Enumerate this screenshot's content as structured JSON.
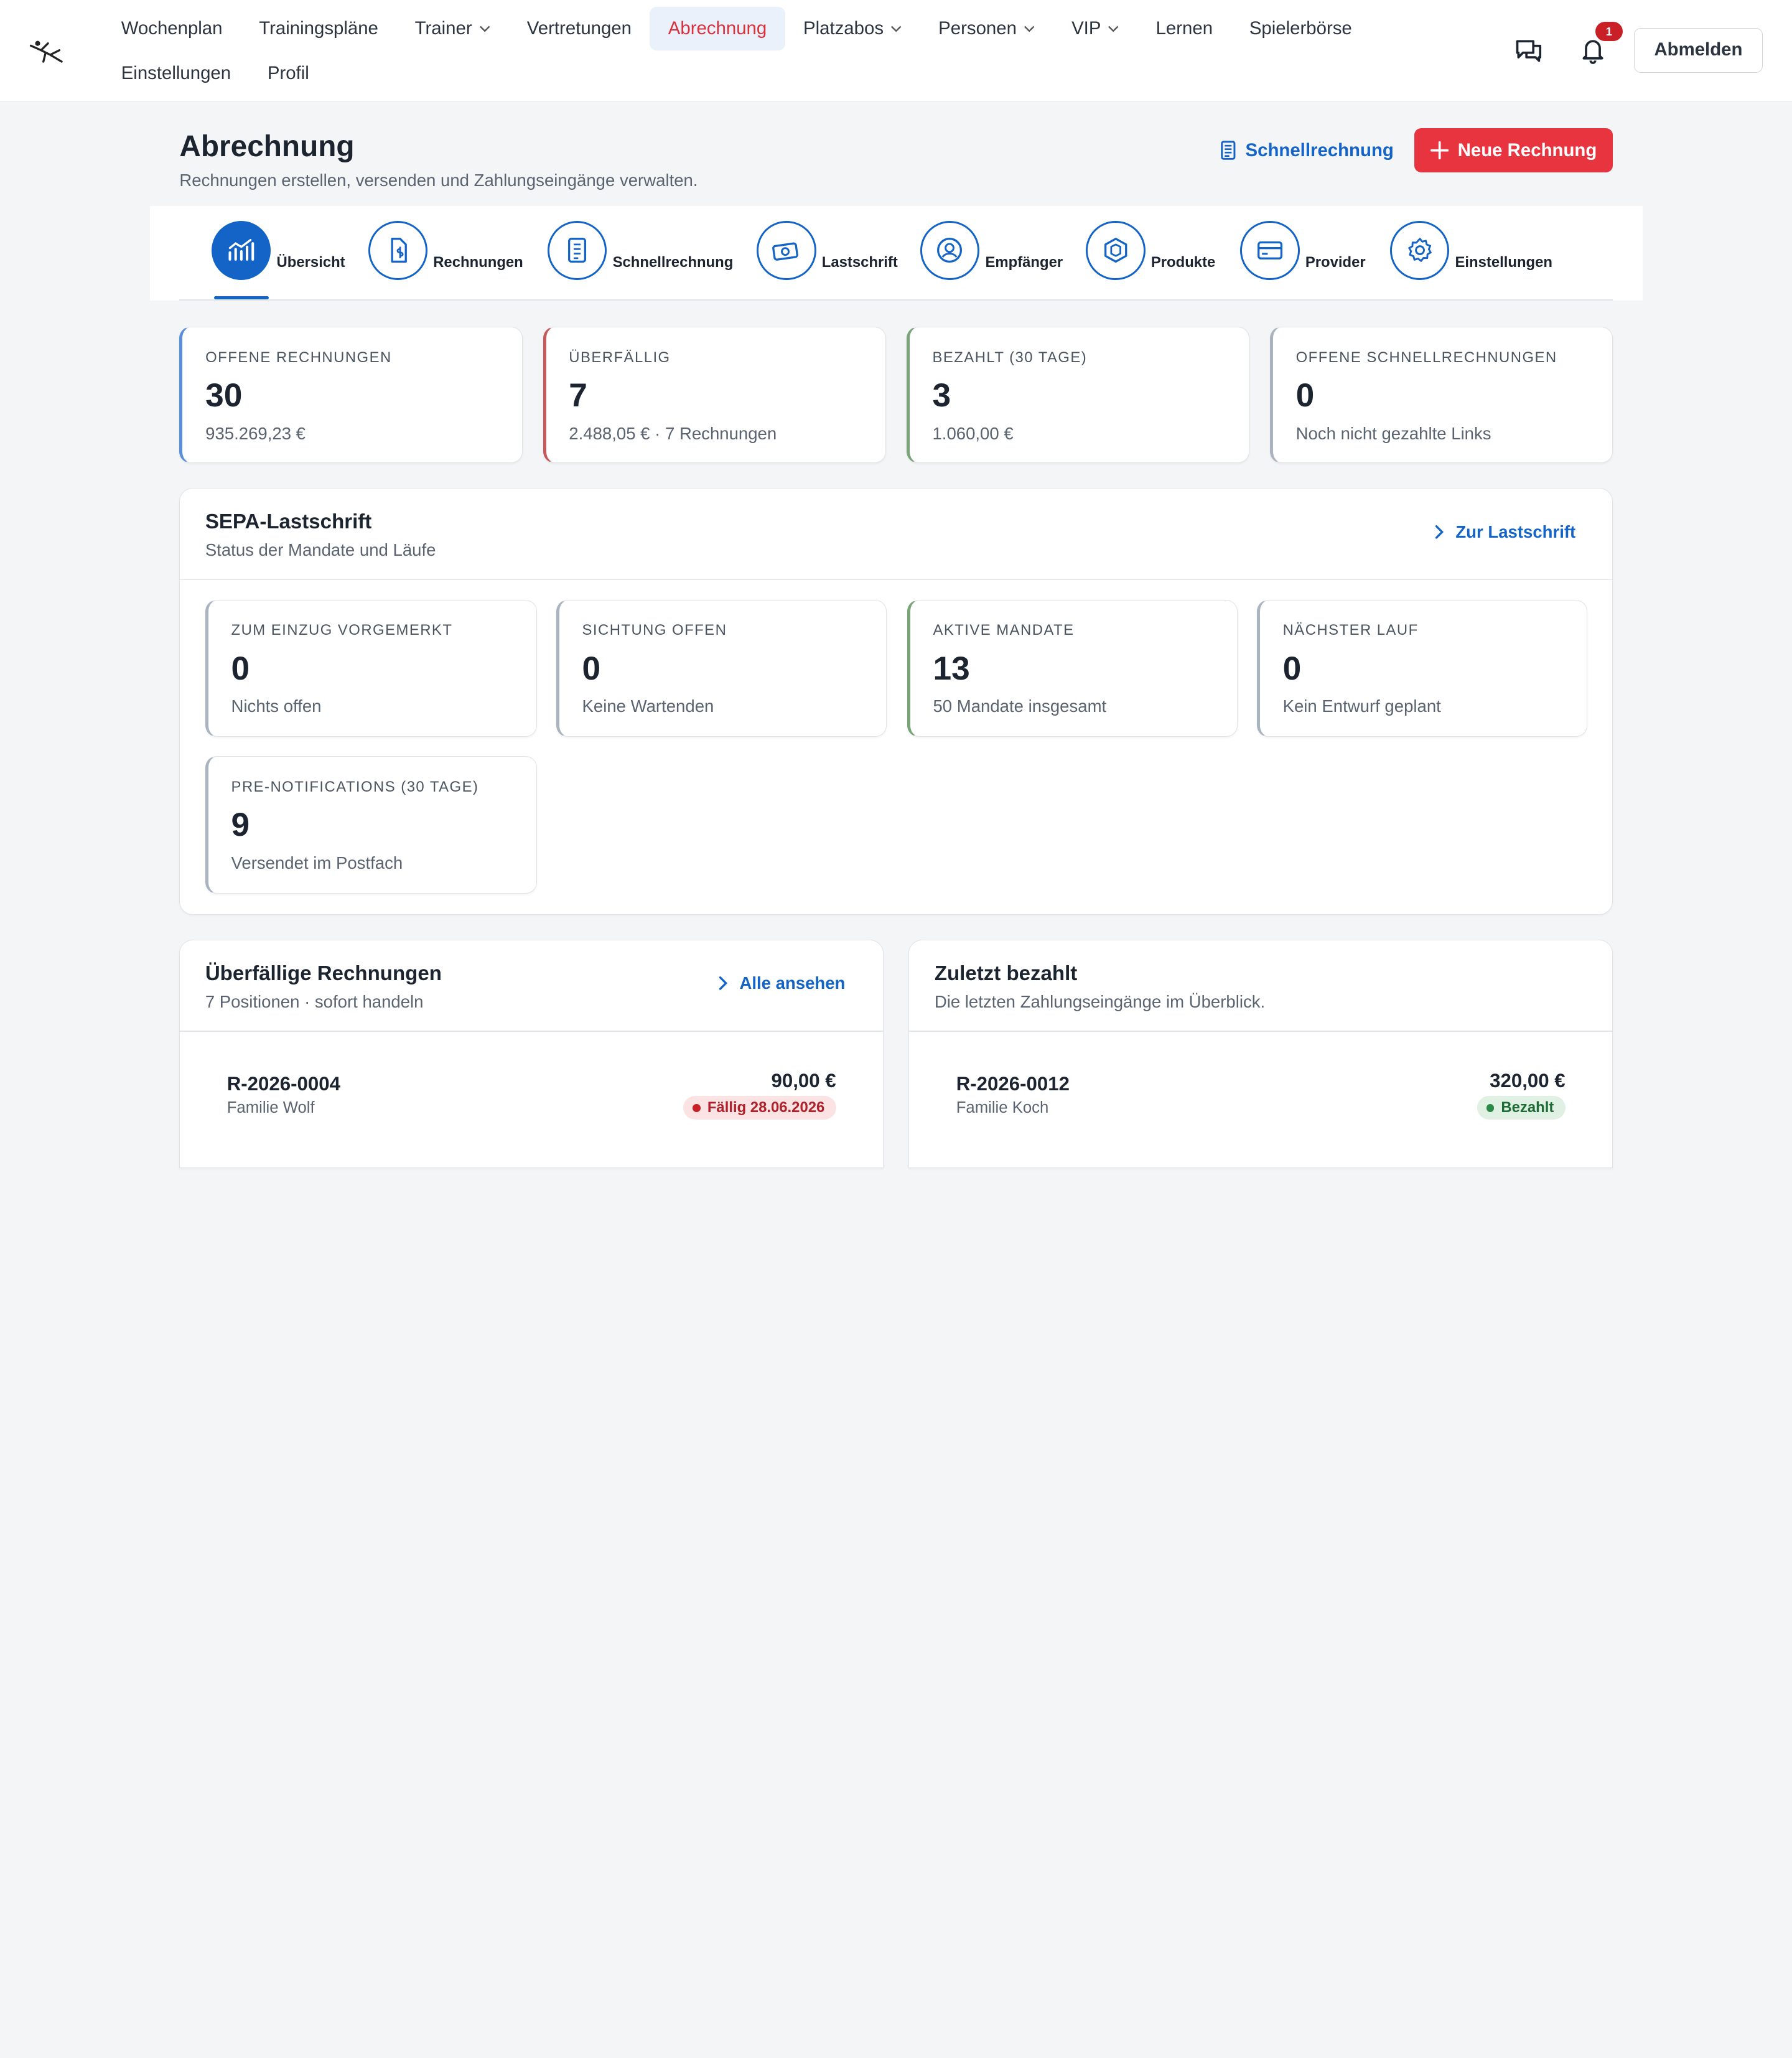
{
  "nav": {
    "items": [
      {
        "label": "Wochenplan",
        "dropdown": false
      },
      {
        "label": "Trainingspläne",
        "dropdown": false
      },
      {
        "label": "Trainer",
        "dropdown": true
      },
      {
        "label": "Vertretungen",
        "dropdown": false
      },
      {
        "label": "Abrechnung",
        "dropdown": false,
        "active": true
      },
      {
        "label": "Platzabos",
        "dropdown": true
      },
      {
        "label": "Personen",
        "dropdown": true
      },
      {
        "label": "VIP",
        "dropdown": true
      },
      {
        "label": "Lernen",
        "dropdown": false
      },
      {
        "label": "Spielerbörse",
        "dropdown": false
      },
      {
        "label": "Einstellungen",
        "dropdown": false
      },
      {
        "label": "Profil",
        "dropdown": false
      }
    ],
    "notifications_count": "1",
    "logout_label": "Abmelden"
  },
  "header": {
    "title": "Abrechnung",
    "subtitle": "Rechnungen erstellen, versenden und Zahlungseingänge verwalten.",
    "quick_invoice_label": "Schnellrechnung",
    "new_invoice_label": "Neue Rechnung"
  },
  "tabs": [
    {
      "label": "Übersicht",
      "icon": "chart-icon",
      "active": true
    },
    {
      "label": "Rechnungen",
      "icon": "invoice-icon"
    },
    {
      "label": "Schnellrechnung",
      "icon": "receipt-icon"
    },
    {
      "label": "Lastschrift",
      "icon": "money-icon"
    },
    {
      "label": "Empfänger",
      "icon": "user-icon"
    },
    {
      "label": "Produkte",
      "icon": "box-icon"
    },
    {
      "label": "Provider",
      "icon": "credit-card-icon"
    },
    {
      "label": "Einstellungen",
      "icon": "gear-icon"
    }
  ],
  "stats": [
    {
      "label": "OFFENE RECHNUNGEN",
      "value": "30",
      "sub": "935.269,23 €",
      "accent": "#5b8fd9"
    },
    {
      "label": "ÜBERFÄLLIG",
      "value": "7",
      "sub": "2.488,05 € · 7 Rechnungen",
      "accent": "#c45a5a"
    },
    {
      "label": "BEZAHLT (30 TAGE)",
      "value": "3",
      "sub": "1.060,00 €",
      "accent": "#7aa37a"
    },
    {
      "label": "OFFENE SCHNELLRECHNUNGEN",
      "value": "0",
      "sub": "Noch nicht gezahlte Links",
      "accent": "#aab4c0"
    }
  ],
  "sepa": {
    "title": "SEPA-Lastschrift",
    "subtitle": "Status der Mandate und Läufe",
    "link_label": "Zur Lastschrift",
    "cards": [
      {
        "label": "ZUM EINZUG VORGEMERKT",
        "value": "0",
        "sub": "Nichts offen",
        "accent": "#aab4c0"
      },
      {
        "label": "SICHTUNG OFFEN",
        "value": "0",
        "sub": "Keine Wartenden",
        "accent": "#aab4c0"
      },
      {
        "label": "AKTIVE MANDATE",
        "value": "13",
        "sub": "50 Mandate insgesamt",
        "accent": "#7aa37a"
      },
      {
        "label": "NÄCHSTER LAUF",
        "value": "0",
        "sub": "Kein Entwurf geplant",
        "accent": "#aab4c0"
      },
      {
        "label": "PRE-NOTIFICATIONS (30 TAGE)",
        "value": "9",
        "sub": "Versendet im Postfach",
        "accent": "#aab4c0"
      }
    ]
  },
  "overdue": {
    "title": "Überfällige Rechnungen",
    "subtitle": "7 Positionen · sofort handeln",
    "link_label": "Alle ansehen",
    "rows": [
      {
        "number": "R-2026-0004",
        "customer": "Familie Wolf",
        "amount": "90,00 €",
        "status": "Fällig 28.06.2026"
      }
    ]
  },
  "paid": {
    "title": "Zuletzt bezahlt",
    "subtitle": "Die letzten Zahlungseingänge im Überblick.",
    "rows": [
      {
        "number": "R-2026-0012",
        "customer": "Familie Koch",
        "amount": "320,00 €",
        "status": "Bezahlt"
      }
    ]
  }
}
